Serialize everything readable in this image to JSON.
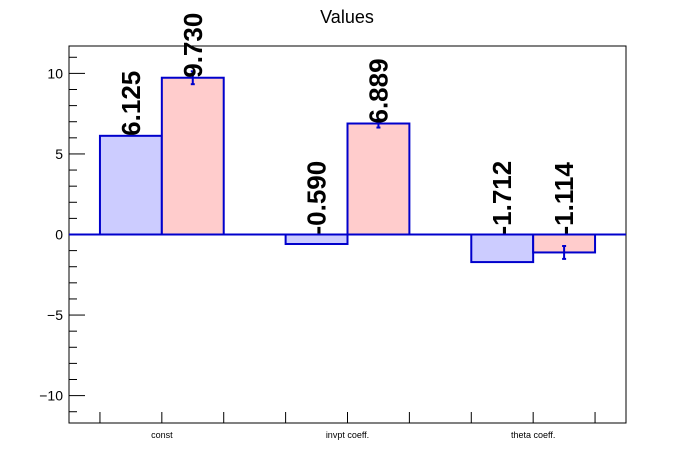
{
  "chart_data": {
    "type": "bar",
    "title": "Values",
    "xlabel": "",
    "ylabel": "",
    "categories": [
      "const",
      "invpt coeff.",
      "theta coeff."
    ],
    "ylim": [
      -11.7,
      11.7
    ],
    "yticks": [
      -10,
      -5,
      0,
      5,
      10
    ],
    "ytick_labels": [
      "−10",
      "−5",
      "0",
      "5",
      "10"
    ],
    "grid": false,
    "series": [
      {
        "values": [
          6.125,
          -0.59,
          -1.712
        ],
        "labels": [
          "6.125",
          "-0.590",
          "-1.712"
        ],
        "color": "#ccccff",
        "edge_color": "#0000cc"
      },
      {
        "values": [
          9.73,
          6.889,
          -1.114
        ],
        "errors": [
          0.4,
          0.25,
          0.4
        ],
        "labels": [
          "9.730",
          "6.889",
          "-1.114"
        ],
        "color": "#ffcccc",
        "edge_color": "#0000cc"
      }
    ]
  }
}
